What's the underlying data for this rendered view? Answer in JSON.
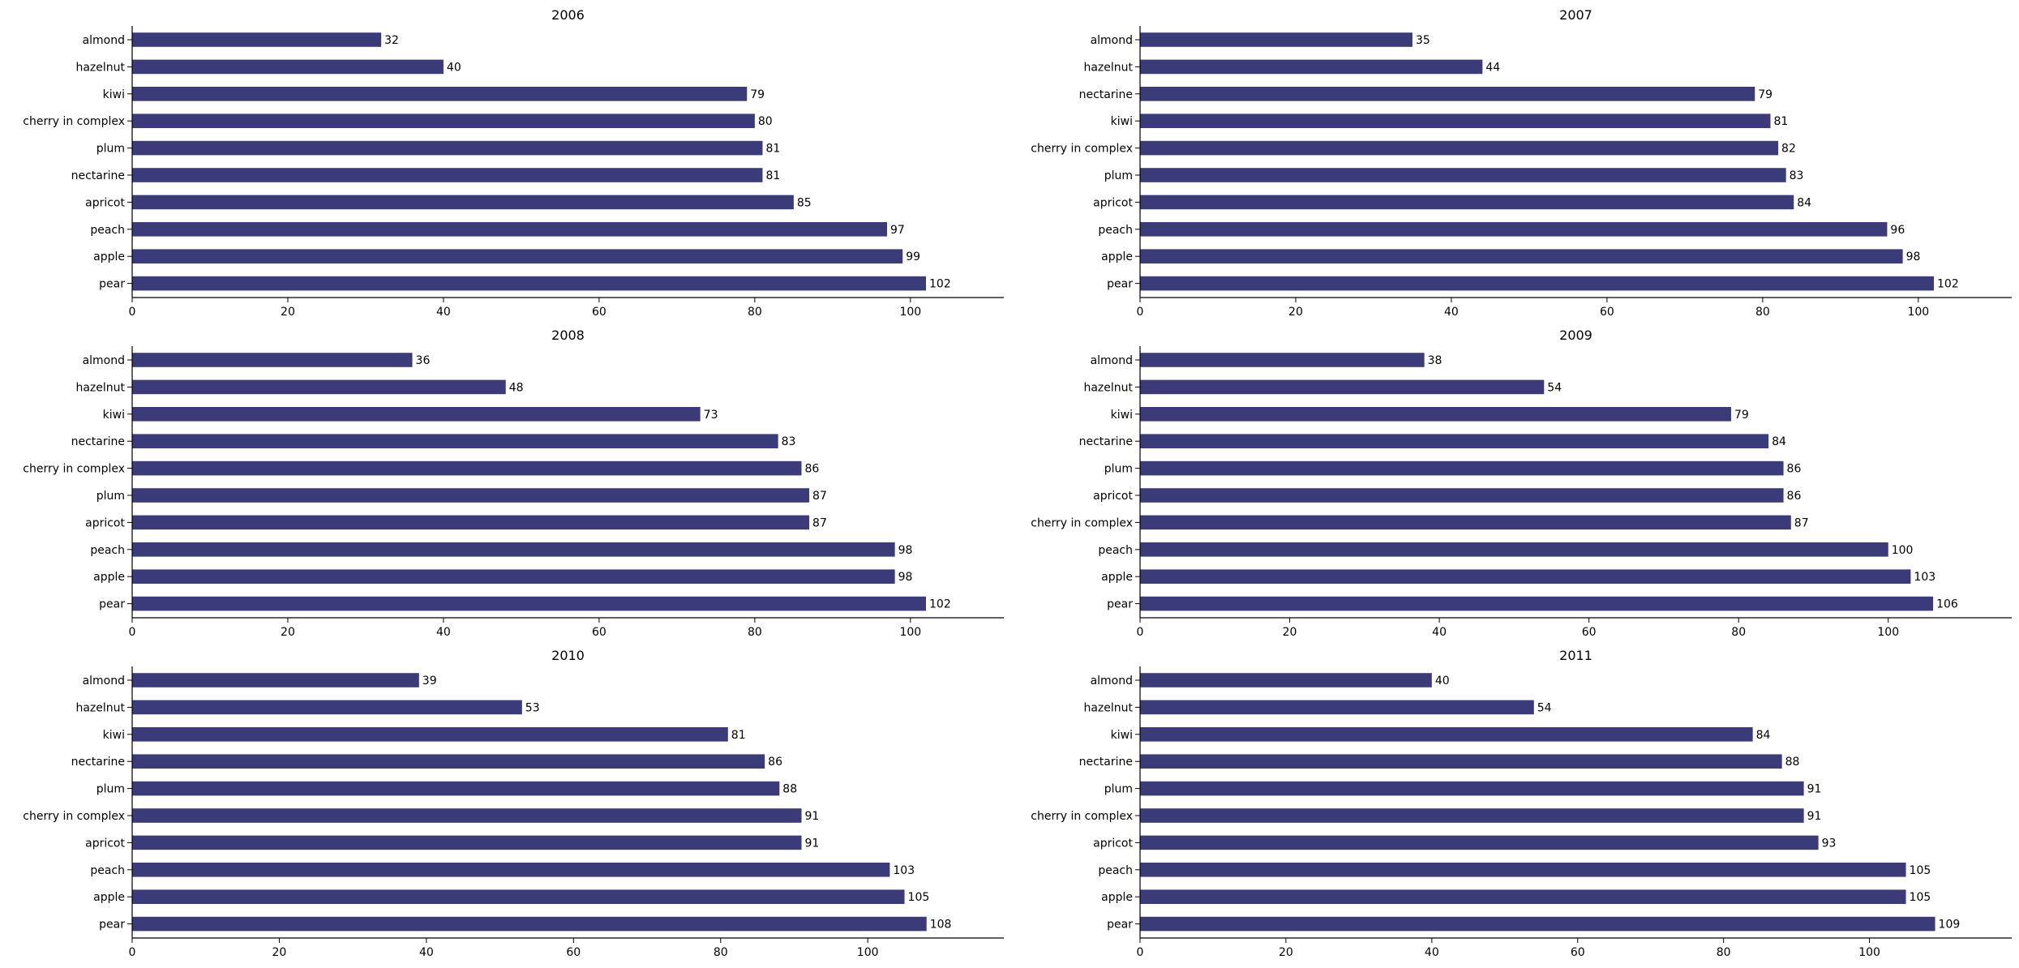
{
  "chart_data": [
    {
      "type": "bar",
      "orientation": "horizontal",
      "title": "2006",
      "categories": [
        "almond",
        "hazelnut",
        "kiwi",
        "cherry in complex",
        "plum",
        "nectarine",
        "apricot",
        "peach",
        "apple",
        "pear"
      ],
      "values": [
        32,
        40,
        79,
        80,
        81,
        81,
        85,
        97,
        99,
        102
      ],
      "xlim": [
        0,
        112
      ],
      "xticks": [
        0,
        20,
        40,
        60,
        80,
        100
      ],
      "grid": false,
      "bar_color": "#3b3b7a"
    },
    {
      "type": "bar",
      "orientation": "horizontal",
      "title": "2007",
      "categories": [
        "almond",
        "hazelnut",
        "nectarine",
        "kiwi",
        "cherry in complex",
        "plum",
        "apricot",
        "peach",
        "apple",
        "pear"
      ],
      "values": [
        35,
        44,
        79,
        81,
        82,
        83,
        84,
        96,
        98,
        102
      ],
      "xlim": [
        0,
        112
      ],
      "xticks": [
        0,
        20,
        40,
        60,
        80,
        100
      ],
      "grid": false,
      "bar_color": "#3b3b7a"
    },
    {
      "type": "bar",
      "orientation": "horizontal",
      "title": "2008",
      "categories": [
        "almond",
        "hazelnut",
        "kiwi",
        "nectarine",
        "cherry in complex",
        "plum",
        "apricot",
        "peach",
        "apple",
        "pear"
      ],
      "values": [
        36,
        48,
        73,
        83,
        86,
        87,
        87,
        98,
        98,
        102
      ],
      "xlim": [
        0,
        112
      ],
      "xticks": [
        0,
        20,
        40,
        60,
        80,
        100
      ],
      "grid": false,
      "bar_color": "#3b3b7a"
    },
    {
      "type": "bar",
      "orientation": "horizontal",
      "title": "2009",
      "categories": [
        "almond",
        "hazelnut",
        "kiwi",
        "nectarine",
        "plum",
        "apricot",
        "cherry in complex",
        "peach",
        "apple",
        "pear"
      ],
      "values": [
        38,
        54,
        79,
        84,
        86,
        86,
        87,
        100,
        103,
        106
      ],
      "xlim": [
        0,
        116.5
      ],
      "xticks": [
        0,
        20,
        40,
        60,
        80,
        100
      ],
      "grid": false,
      "bar_color": "#3b3b7a"
    },
    {
      "type": "bar",
      "orientation": "horizontal",
      "title": "2010",
      "categories": [
        "almond",
        "hazelnut",
        "kiwi",
        "nectarine",
        "plum",
        "cherry in complex",
        "apricot",
        "peach",
        "apple",
        "pear"
      ],
      "values": [
        39,
        53,
        81,
        86,
        88,
        91,
        91,
        103,
        105,
        108
      ],
      "xlim": [
        0,
        118.5
      ],
      "xticks": [
        0,
        20,
        40,
        60,
        80,
        100
      ],
      "grid": false,
      "bar_color": "#3b3b7a"
    },
    {
      "type": "bar",
      "orientation": "horizontal",
      "title": "2011",
      "categories": [
        "almond",
        "hazelnut",
        "kiwi",
        "nectarine",
        "plum",
        "cherry in complex",
        "apricot",
        "peach",
        "apple",
        "pear"
      ],
      "values": [
        40,
        54,
        84,
        88,
        91,
        91,
        93,
        105,
        105,
        109
      ],
      "xlim": [
        0,
        119.5
      ],
      "xticks": [
        0,
        20,
        40,
        60,
        80,
        100
      ],
      "grid": false,
      "bar_color": "#3b3b7a"
    }
  ]
}
